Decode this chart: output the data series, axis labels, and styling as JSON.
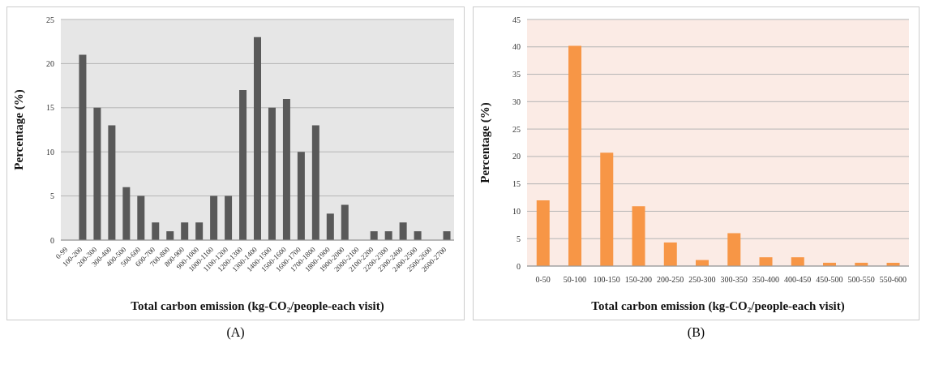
{
  "chart_data": [
    {
      "type": "bar",
      "xlabel": "Total carbon emission (kg-CO₂/people-each visit)",
      "ylabel": "Percentage (%)",
      "categories": [
        "0-99",
        "100-200",
        "200-300",
        "300-400",
        "400-500",
        "500-600",
        "600-700",
        "700-800",
        "800-900",
        "900-1000",
        "1000-1100",
        "1100-1200",
        "1200-1300",
        "1300-1400",
        "1400-1500",
        "1500-1600",
        "1600-1700",
        "1700-1800",
        "1800-1900",
        "1900-2000",
        "2000-2100",
        "2100-2200",
        "2200-2300",
        "2300-2400",
        "2400-2500",
        "2500-2600",
        "2600-2700"
      ],
      "values": [
        0,
        21,
        15,
        13,
        6,
        5,
        2,
        1,
        2,
        2,
        5,
        5,
        17,
        23,
        15,
        16,
        10,
        13,
        3,
        4,
        0,
        1,
        1,
        2,
        1,
        0,
        1
      ],
      "color": "#595959",
      "ylim": [
        0,
        25
      ],
      "yticks": [
        0,
        5,
        10,
        15,
        20,
        25
      ],
      "grid": "y",
      "annotations": [
        "(A)"
      ]
    },
    {
      "type": "bar",
      "xlabel": "Total carbon emission (kg-CO₂/people-each visit)",
      "ylabel": "Percentage (%)",
      "categories": [
        "0-50",
        "50-100",
        "100-150",
        "150-200",
        "200-250",
        "250-300",
        "300-350",
        "350-400",
        "400-450",
        "450-500",
        "500-550",
        "550-600"
      ],
      "values": [
        12,
        40.2,
        20.7,
        10.9,
        4.3,
        1.1,
        6.0,
        1.6,
        1.6,
        0.6,
        0.6,
        0.6
      ],
      "color": "#f79646",
      "ylim": [
        0,
        45
      ],
      "yticks": [
        0,
        5,
        10,
        15,
        20,
        25,
        30,
        35,
        40,
        45
      ],
      "grid": "y",
      "annotations": [
        "(B)"
      ]
    }
  ]
}
